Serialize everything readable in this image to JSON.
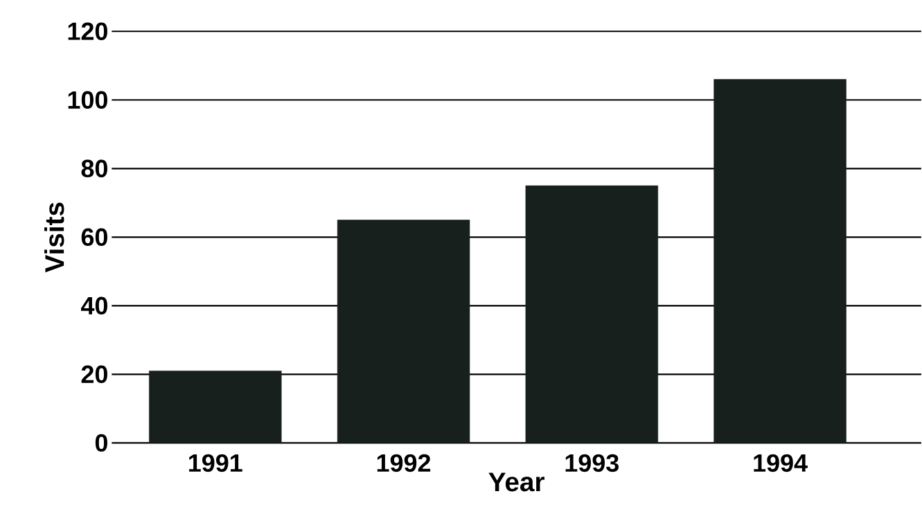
{
  "chart_data": {
    "type": "bar",
    "xlabel": "Year",
    "ylabel": "Visits",
    "categories": [
      "1991",
      "1992",
      "1993",
      "1994"
    ],
    "values": [
      21,
      65,
      75,
      106
    ],
    "color": "#17201c",
    "ylim": [
      0,
      120
    ],
    "yticks": [
      0,
      20,
      40,
      60,
      80,
      100,
      120
    ],
    "grid": "y"
  }
}
